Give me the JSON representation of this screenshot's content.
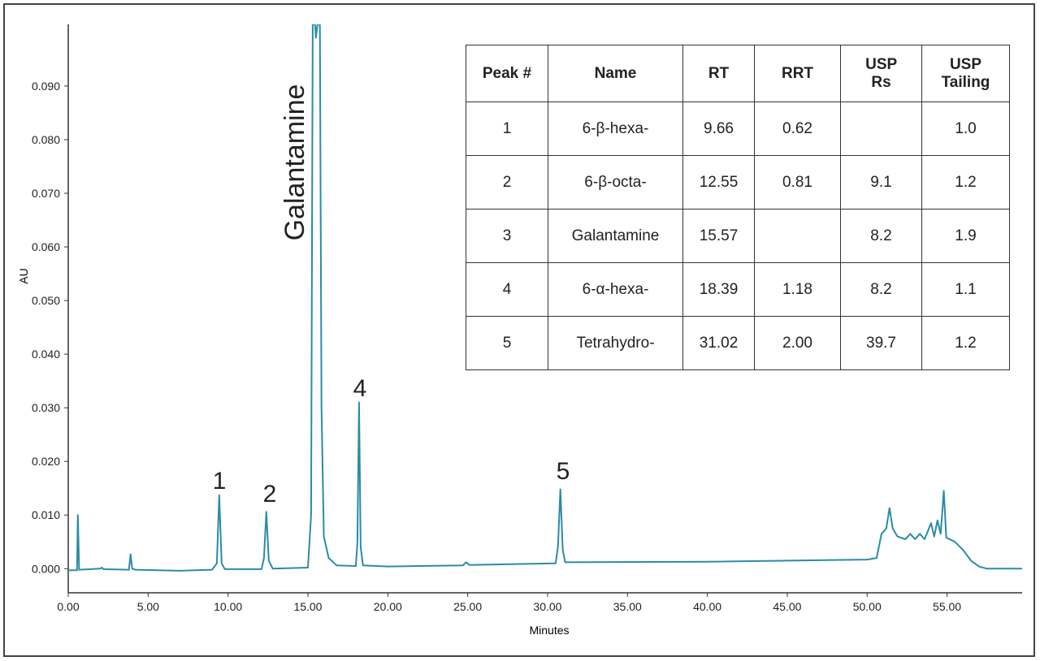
{
  "chart_data": {
    "type": "line",
    "ylabel": "AU",
    "xlabel": "Minutes",
    "color": "#2a8ca6",
    "xlim": [
      0,
      59.7
    ],
    "ylim": [
      -0.0045,
      0.1015
    ],
    "xticks": [
      {
        "value": 0,
        "label": "0.00"
      },
      {
        "value": 5,
        "label": "5.00"
      },
      {
        "value": 10,
        "label": "10.00"
      },
      {
        "value": 15,
        "label": "15.00"
      },
      {
        "value": 20,
        "label": "20.00"
      },
      {
        "value": 25,
        "label": "25.00"
      },
      {
        "value": 30,
        "label": "30.00"
      },
      {
        "value": 35,
        "label": "35.00"
      },
      {
        "value": 40,
        "label": "40.00"
      },
      {
        "value": 45,
        "label": "45.00"
      },
      {
        "value": 50,
        "label": "50.00"
      },
      {
        "value": 55,
        "label": "55.00"
      }
    ],
    "yticks": [
      {
        "value": 0,
        "label": "0.000"
      },
      {
        "value": 0.01,
        "label": "0.010"
      },
      {
        "value": 0.02,
        "label": "0.020"
      },
      {
        "value": 0.03,
        "label": "0.030"
      },
      {
        "value": 0.04,
        "label": "0.040"
      },
      {
        "value": 0.05,
        "label": "0.050"
      },
      {
        "value": 0.06,
        "label": "0.060"
      },
      {
        "value": 0.07,
        "label": "0.070"
      },
      {
        "value": 0.08,
        "label": "0.080"
      },
      {
        "value": 0.09,
        "label": "0.090"
      }
    ],
    "x": [
      0,
      0.55,
      0.6,
      0.68,
      2.0,
      2.1,
      2.2,
      3.8,
      3.9,
      4.0,
      4.2,
      7.0,
      9.0,
      9.3,
      9.45,
      9.6,
      9.8,
      12.1,
      12.25,
      12.4,
      12.55,
      12.8,
      15.0,
      15.2,
      15.3,
      15.45,
      15.5,
      15.6,
      15.75,
      15.85,
      16.0,
      16.3,
      16.8,
      18.0,
      18.1,
      18.2,
      18.3,
      18.45,
      20,
      24.7,
      24.9,
      25.1,
      30.5,
      30.65,
      30.8,
      30.95,
      31.1,
      40,
      50,
      50.6,
      50.9,
      51.2,
      51.4,
      51.6,
      51.9,
      52.4,
      52.7,
      53.0,
      53.3,
      53.6,
      54.0,
      54.2,
      54.4,
      54.6,
      54.8,
      54.95,
      55.5,
      56.0,
      56.5,
      57.0,
      57.5,
      59.7
    ],
    "values": [
      -0.0003,
      -0.0003,
      0.01,
      -0.0002,
      0.0,
      0.0002,
      -0.0001,
      -0.0002,
      0.0027,
      0.0,
      -0.0002,
      -0.0004,
      -0.0002,
      0.001,
      0.0137,
      0.001,
      -0.0001,
      -0.0001,
      0.002,
      0.0106,
      0.0015,
      0.0,
      0.0002,
      0.01,
      0.1015,
      0.1015,
      0.099,
      0.1015,
      0.1015,
      0.03,
      0.006,
      0.002,
      0.0006,
      0.0005,
      0.005,
      0.031,
      0.004,
      0.0006,
      0.0004,
      0.0006,
      0.0012,
      0.0007,
      0.001,
      0.004,
      0.0148,
      0.0035,
      0.0012,
      0.0013,
      0.0017,
      0.002,
      0.0065,
      0.0075,
      0.0113,
      0.0075,
      0.006,
      0.0055,
      0.0065,
      0.0055,
      0.0065,
      0.0055,
      0.0085,
      0.006,
      0.009,
      0.0065,
      0.0145,
      0.0058,
      0.005,
      0.0035,
      0.0015,
      0.0004,
      0.0,
      0.0
    ],
    "annotations": [
      "1",
      "2",
      "Galantamine",
      "4",
      "5"
    ]
  },
  "table": {
    "header": [
      "Peak #",
      "Name",
      "RT",
      "RRT",
      "USP Rs",
      "USP Tailing"
    ],
    "rows": [
      [
        "1",
        "6-β-hexa-",
        "9.66",
        "0.62",
        null,
        "1.0"
      ],
      [
        "2",
        "6-β-octa-",
        "12.55",
        "0.81",
        "9.1",
        "1.2"
      ],
      [
        "3",
        "Galantamine",
        "15.57",
        null,
        "8.2",
        "1.9"
      ],
      [
        "4",
        "6-α-hexa-",
        "18.39",
        "1.18",
        "8.2",
        "1.1"
      ],
      [
        "5",
        "Tetrahydro-",
        "31.02",
        "2.00",
        "39.7",
        "1.2"
      ]
    ]
  }
}
